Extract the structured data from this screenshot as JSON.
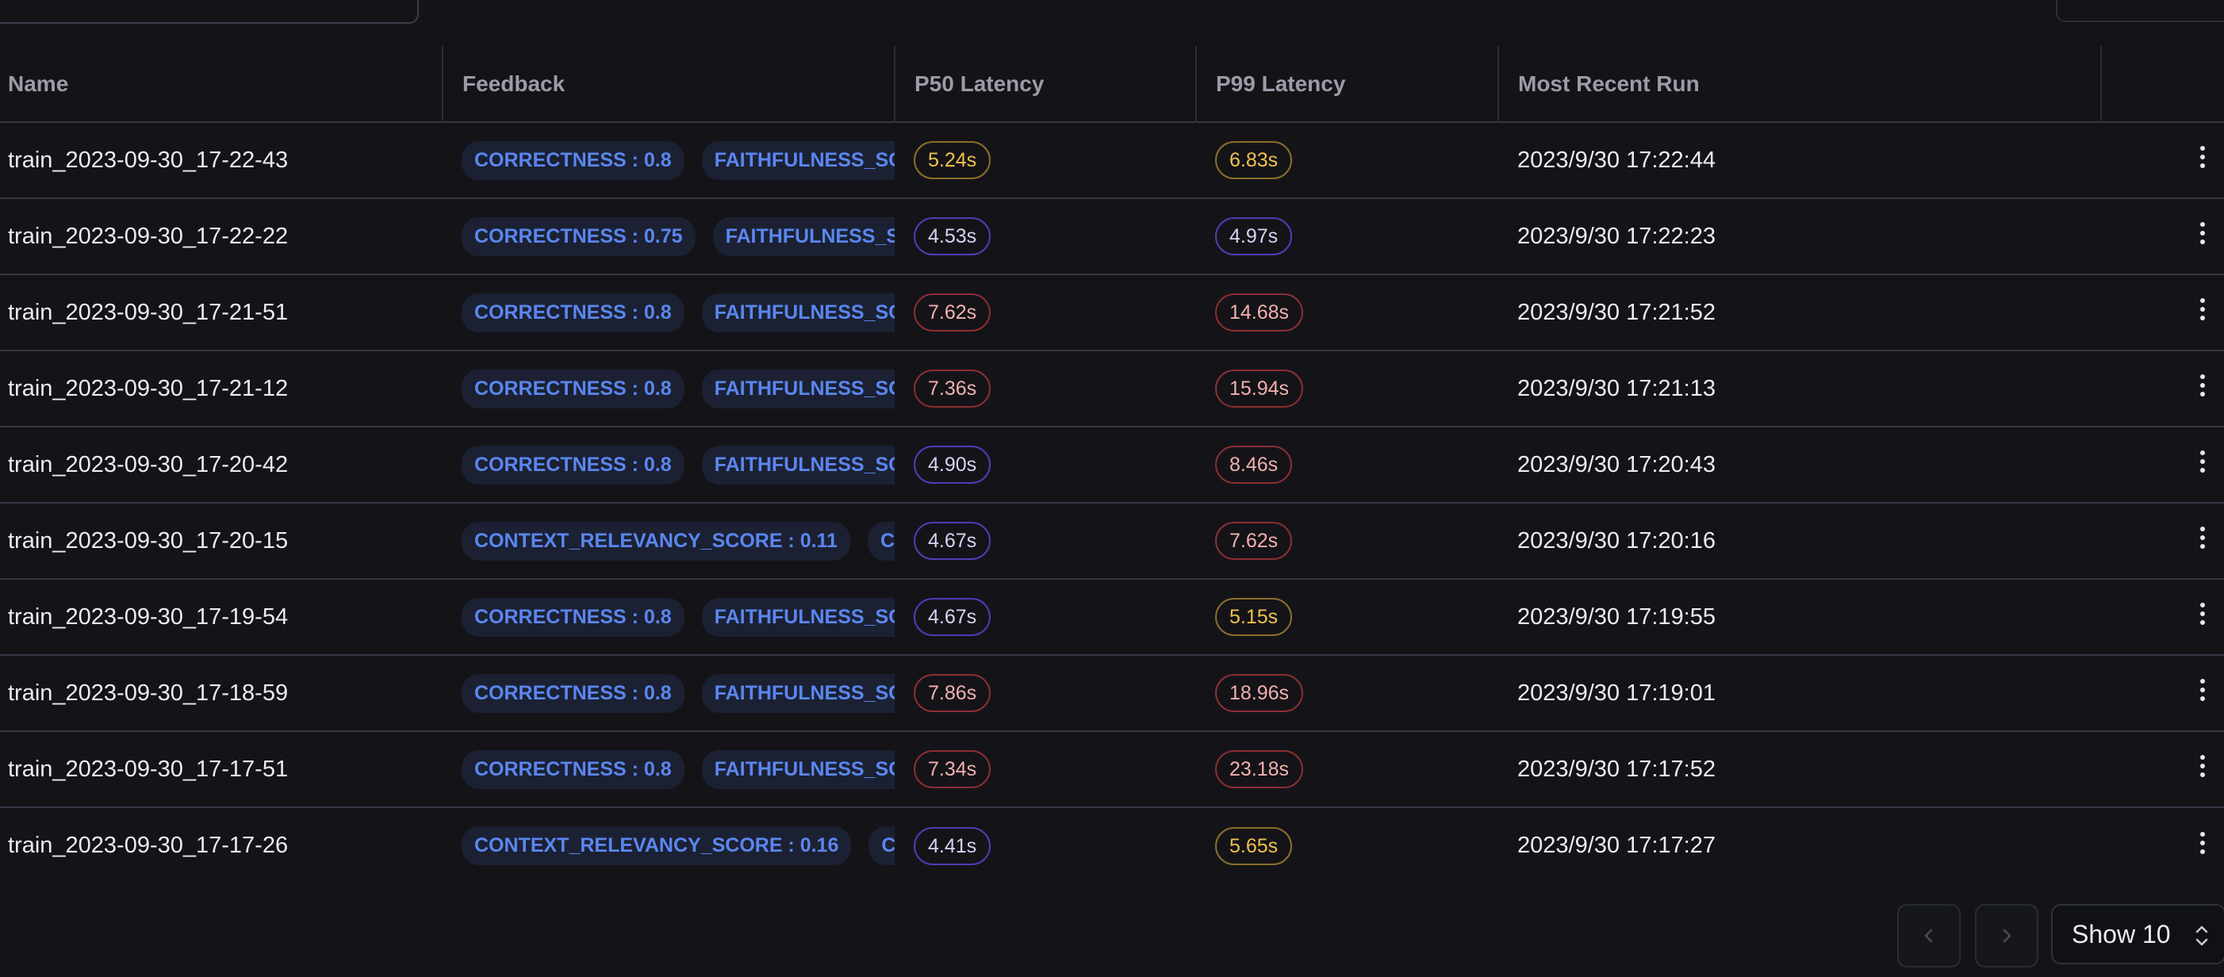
{
  "columns": {
    "name": "Name",
    "feedback": "Feedback",
    "p50": "P50 Latency",
    "p99": "P99 Latency",
    "recent": "Most Recent Run"
  },
  "rows": [
    {
      "name": "train_2023-09-30_17-22-43",
      "fb1": "CORRECTNESS : 0.8",
      "fb2": "FAITHFULNESS_SCORE",
      "p50": "5.24s",
      "p50_color": "yellow",
      "p99": "6.83s",
      "p99_color": "yellow",
      "recent": "2023/9/30 17:22:44"
    },
    {
      "name": "train_2023-09-30_17-22-22",
      "fb1": "CORRECTNESS : 0.75",
      "fb2": "FAITHFULNESS_SCORE",
      "p50": "4.53s",
      "p50_color": "purple",
      "p99": "4.97s",
      "p99_color": "purple",
      "recent": "2023/9/30 17:22:23"
    },
    {
      "name": "train_2023-09-30_17-21-51",
      "fb1": "CORRECTNESS : 0.8",
      "fb2": "FAITHFULNESS_SCORE",
      "p50": "7.62s",
      "p50_color": "red",
      "p99": "14.68s",
      "p99_color": "red",
      "recent": "2023/9/30 17:21:52"
    },
    {
      "name": "train_2023-09-30_17-21-12",
      "fb1": "CORRECTNESS : 0.8",
      "fb2": "FAITHFULNESS_SCORE",
      "p50": "7.36s",
      "p50_color": "red",
      "p99": "15.94s",
      "p99_color": "red",
      "recent": "2023/9/30 17:21:13"
    },
    {
      "name": "train_2023-09-30_17-20-42",
      "fb1": "CORRECTNESS : 0.8",
      "fb2": "FAITHFULNESS_SCORE",
      "p50": "4.90s",
      "p50_color": "purple",
      "p99": "8.46s",
      "p99_color": "red",
      "recent": "2023/9/30 17:20:43"
    },
    {
      "name": "train_2023-09-30_17-20-15",
      "fb1": "CONTEXT_RELEVANCY_SCORE : 0.11",
      "fb2": "CORRECTNESS",
      "p50": "4.67s",
      "p50_color": "purple",
      "p99": "7.62s",
      "p99_color": "red",
      "recent": "2023/9/30 17:20:16"
    },
    {
      "name": "train_2023-09-30_17-19-54",
      "fb1": "CORRECTNESS : 0.8",
      "fb2": "FAITHFULNESS_SCORE",
      "p50": "4.67s",
      "p50_color": "purple",
      "p99": "5.15s",
      "p99_color": "yellow",
      "recent": "2023/9/30 17:19:55"
    },
    {
      "name": "train_2023-09-30_17-18-59",
      "fb1": "CORRECTNESS : 0.8",
      "fb2": "FAITHFULNESS_SCORE",
      "p50": "7.86s",
      "p50_color": "red",
      "p99": "18.96s",
      "p99_color": "red",
      "recent": "2023/9/30 17:19:01"
    },
    {
      "name": "train_2023-09-30_17-17-51",
      "fb1": "CORRECTNESS : 0.8",
      "fb2": "FAITHFULNESS_SCORE",
      "p50": "7.34s",
      "p50_color": "red",
      "p99": "23.18s",
      "p99_color": "red",
      "recent": "2023/9/30 17:17:52"
    },
    {
      "name": "train_2023-09-30_17-17-26",
      "fb1": "CONTEXT_RELEVANCY_SCORE : 0.16",
      "fb2": "CORRECTNESS",
      "p50": "4.41s",
      "p50_color": "purple",
      "p99": "5.65s",
      "p99_color": "yellow",
      "recent": "2023/9/30 17:17:27"
    }
  ],
  "pagination": {
    "page_size_label": "Show 10"
  },
  "colors": {
    "background": "#141418",
    "chip_text": "#5b86ef",
    "yellow": "#f2c14e",
    "purple": "#4b3fb6",
    "red": "#8a2e33"
  }
}
